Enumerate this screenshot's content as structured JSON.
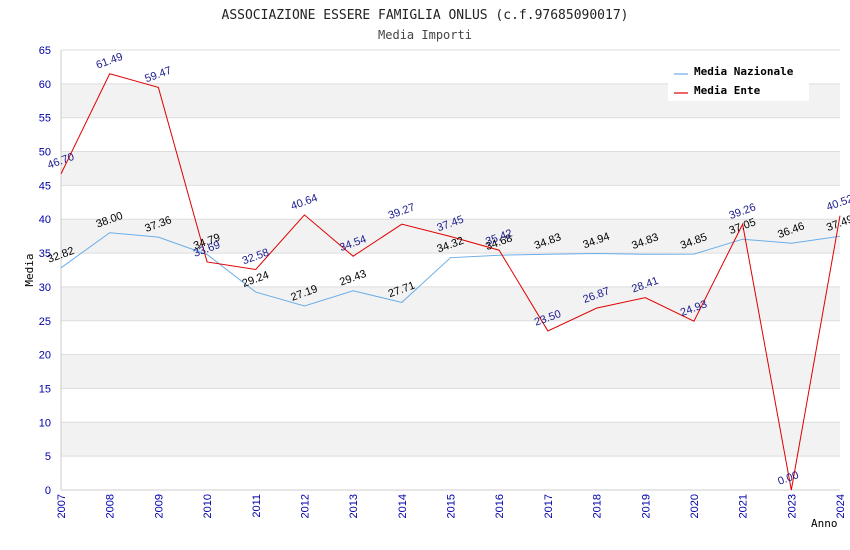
{
  "chart_data": {
    "type": "line",
    "title": "ASSOCIAZIONE ESSERE FAMIGLIA ONLUS (c.f.97685090017)",
    "subtitle": "Media Importi",
    "xlabel": "Anno",
    "ylabel": "Media",
    "ylim": [
      0,
      65
    ],
    "yticks": [
      0,
      5,
      10,
      15,
      20,
      25,
      30,
      35,
      40,
      45,
      50,
      55,
      60,
      65
    ],
    "grid": "horizontal alternating bands",
    "legend_position": "top-right",
    "x": [
      "2007",
      "2008",
      "2009",
      "2010",
      "2011",
      "2012",
      "2013",
      "2014",
      "2015",
      "2016",
      "2017",
      "2018",
      "2019",
      "2020",
      "2021",
      "2023",
      "2024"
    ],
    "series": [
      {
        "name": "Media Nazionale",
        "color": "#6aaee8",
        "values": [
          32.82,
          38.0,
          37.36,
          34.79,
          29.24,
          27.19,
          29.43,
          27.71,
          34.32,
          34.68,
          34.83,
          34.94,
          34.83,
          34.85,
          37.05,
          36.46,
          37.49
        ],
        "labels": [
          "32.82",
          "38.00",
          "37.36",
          "34.79",
          "29.24",
          "27.19",
          "29.43",
          "27.71",
          "34.32",
          "34.68",
          "34.83",
          "34.94",
          "34.83",
          "34.85",
          "37.05",
          "36.46",
          "37.49"
        ]
      },
      {
        "name": "Media Ente",
        "color": "#e00000",
        "values": [
          46.7,
          61.49,
          59.47,
          33.69,
          32.58,
          40.64,
          34.54,
          39.27,
          37.45,
          35.42,
          23.5,
          26.87,
          28.41,
          24.93,
          39.26,
          0.0,
          40.52
        ],
        "labels": [
          "46.70",
          "61.49",
          "59.47",
          "33.69",
          "32.58",
          "40.64",
          "34.54",
          "39.27",
          "37.45",
          "35.42",
          "23.50",
          "26.87",
          "28.41",
          "24.93",
          "39.26",
          "0.00",
          "40.52"
        ]
      }
    ]
  }
}
